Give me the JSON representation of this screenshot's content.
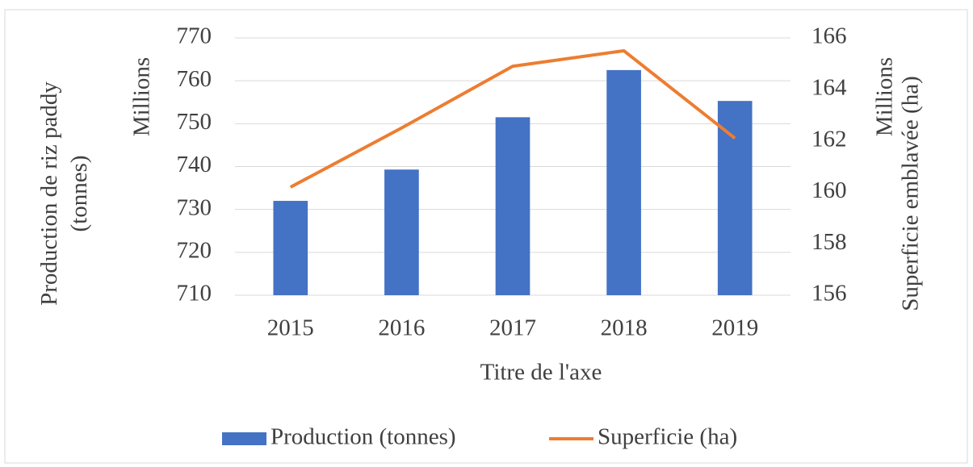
{
  "chart_data": {
    "type": "bar_line",
    "categories": [
      "2015",
      "2016",
      "2017",
      "2018",
      "2019"
    ],
    "x_label": "Titre de l'axe",
    "y_label": "Production de riz paddy (tonnes)",
    "y2_label": "Superficie emblavée (ha)",
    "y_unit": "Millions",
    "y2_unit": "Millions",
    "series": [
      {
        "name": "Production (tonnes)",
        "type": "bar",
        "color": "#4472c4",
        "values": [
          732,
          739.3,
          751.5,
          762.5,
          755.3
        ]
      },
      {
        "name": "Superficie (ha)",
        "type": "line",
        "axis": "y2",
        "color": "#ed7d31",
        "values": [
          160.2,
          162.5,
          164.9,
          165.5,
          162.1
        ]
      }
    ],
    "ylim": [
      710,
      770
    ],
    "yticks": [
      710,
      720,
      730,
      740,
      750,
      760,
      770
    ],
    "y2lim": [
      156,
      166
    ],
    "y2ticks": [
      156,
      158,
      160,
      162,
      164,
      166
    ],
    "grid": true,
    "legend": "bottom"
  }
}
